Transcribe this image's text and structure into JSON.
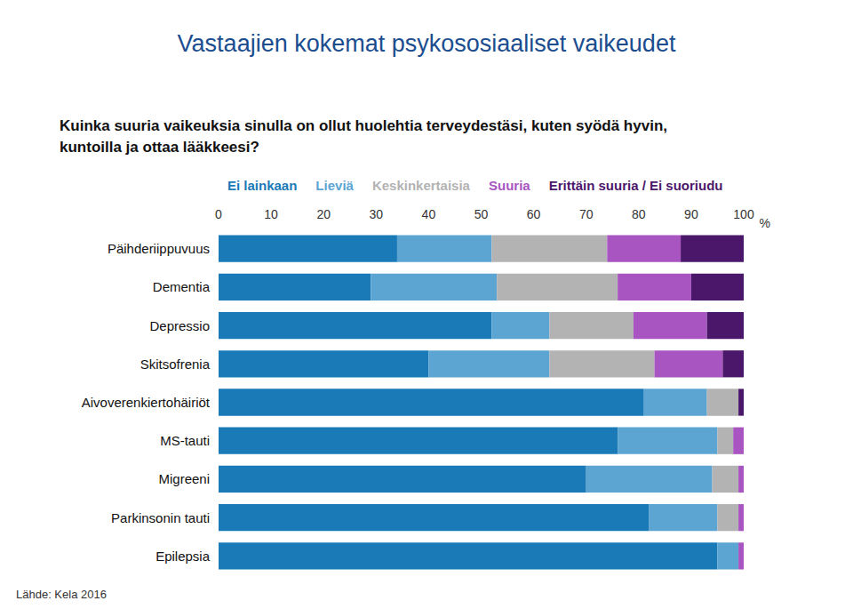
{
  "chart_data": {
    "type": "bar",
    "title": "Vastaajien kokemat psykososiaaliset vaikeudet",
    "subtitle": "Kuinka suuria vaikeuksia sinulla on ollut huolehtia terveydestäsi, kuten syödä hyvin, kuntoilla ja ottaa lääkkeesi?",
    "annotation": "Lähde: Kela 2016",
    "xlabel": "%",
    "orientation": "horizontal",
    "stacked": true,
    "grid": false,
    "legend": "top",
    "data_labels": false,
    "categories": [
      "Päihderiippuvuus",
      "Dementia",
      "Depressio",
      "Skitsofrenia",
      "Aivoverenkiertohäiriöt",
      "MS-tauti",
      "Migreeni",
      "Parkinsonin tauti",
      "Epilepsia"
    ],
    "xlim": [
      0,
      100
    ],
    "xticks": [
      0,
      10,
      20,
      30,
      40,
      50,
      60,
      70,
      80,
      90,
      100
    ],
    "series": [
      {
        "name": "Ei lainkaan",
        "color": "#1a7ab8",
        "values": [
          34,
          29,
          52,
          40,
          81,
          76,
          70,
          82,
          95
        ]
      },
      {
        "name": "Lieviä",
        "color": "#5ca5d2",
        "values": [
          18,
          24,
          11,
          23,
          12,
          19,
          24,
          13,
          4
        ]
      },
      {
        "name": "Keskinkertaisia",
        "color": "#b3b3b3",
        "values": [
          22,
          23,
          16,
          20,
          6,
          3,
          5,
          4,
          0
        ]
      },
      {
        "name": "Suuria",
        "color": "#a855c2",
        "values": [
          14,
          14,
          14,
          13,
          0,
          2,
          1,
          1,
          1
        ]
      },
      {
        "name": "Erittäin suuria / Ei suoriudu",
        "color": "#4b176a",
        "values": [
          12,
          10,
          7,
          4,
          1,
          0,
          0,
          0,
          0
        ]
      }
    ]
  }
}
